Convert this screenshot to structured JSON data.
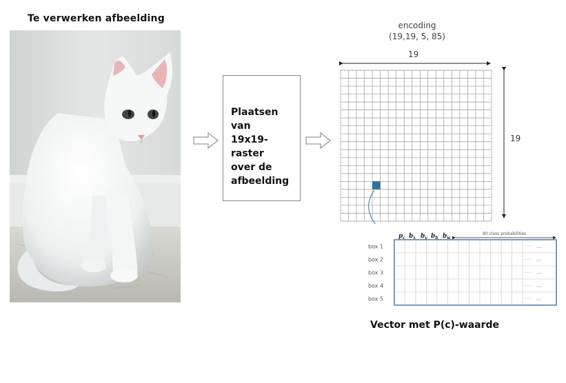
{
  "input_title": "Te verwerken afbeelding",
  "step_text_lines": [
    "Plaatsen",
    "van",
    "19x19-raster",
    "over de",
    "afbeelding"
  ],
  "encoding": {
    "title": "encoding",
    "shape": "(19,19, 5, 85)",
    "width_label": "19",
    "height_label": "19",
    "grid_size": 19
  },
  "vector": {
    "headers": [
      "p",
      "b",
      "b",
      "b",
      "b"
    ],
    "header_subscripts": [
      "c",
      "x",
      "y",
      "h",
      "w"
    ],
    "probs_label": "80 class probabilities",
    "box_labels": [
      "box 1",
      "box 2",
      "box 3",
      "box 4",
      "box 5"
    ],
    "ellipsis": "..."
  },
  "vector_caption": "Vector met P(c)-waarde",
  "colors": {
    "highlight_cell": "#2f6f9f",
    "grid_line": "#9a9a9a",
    "table_border": "#4a7aa8",
    "connector": "#5a8ab8"
  }
}
